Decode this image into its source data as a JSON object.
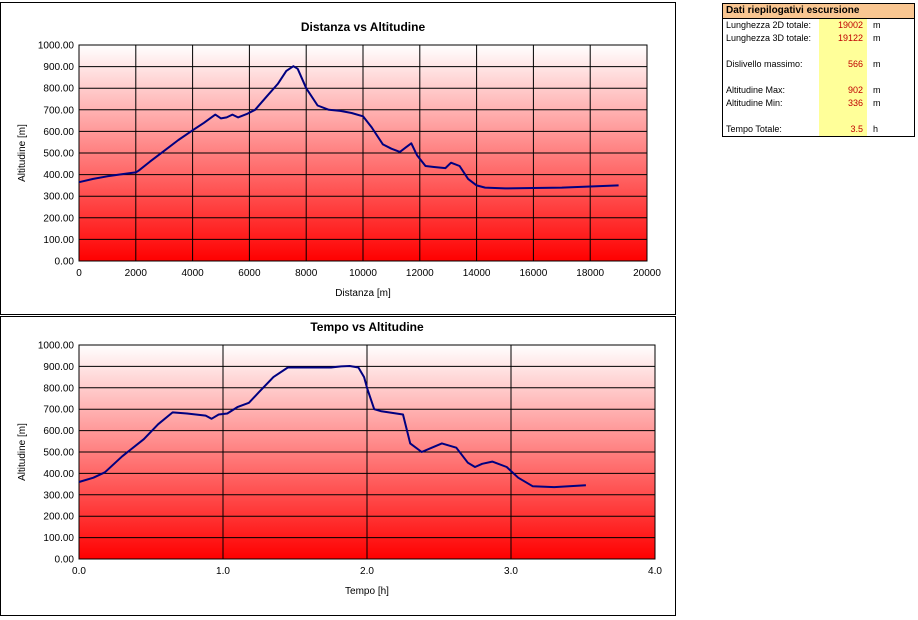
{
  "summary": {
    "title": "Dati riepilogativi escursione",
    "rows": [
      {
        "label": "Lunghezza 2D totale:",
        "value": "19002",
        "unit": "m"
      },
      {
        "label": "Lunghezza 3D totale:",
        "value": "19122",
        "unit": "m"
      },
      {
        "label": "",
        "value": "",
        "unit": ""
      },
      {
        "label": "Dislivello massimo:",
        "value": "566",
        "unit": "m"
      },
      {
        "label": "",
        "value": "",
        "unit": ""
      },
      {
        "label": "Altitudine Max:",
        "value": "902",
        "unit": "m"
      },
      {
        "label": "Altitudine Min:",
        "value": "336",
        "unit": "m"
      },
      {
        "label": "",
        "value": "",
        "unit": ""
      },
      {
        "label": "Tempo Totale:",
        "value": "3.5",
        "unit": "h"
      }
    ],
    "colors": {
      "title_bg": "#f9c691",
      "value_bg": "#ffff99",
      "value_text": "#c00000"
    }
  },
  "chart_data": [
    {
      "type": "line",
      "title": "Distanza vs Altitudine",
      "xlabel": "Distanza [m]",
      "ylabel": "Altitudine [m]",
      "xlim": [
        0,
        20000
      ],
      "ylim": [
        0,
        1000
      ],
      "xticks": [
        0,
        2000,
        4000,
        6000,
        8000,
        10000,
        12000,
        14000,
        16000,
        18000,
        20000
      ],
      "xtick_labels": [
        "0",
        "2000",
        "4000",
        "6000",
        "8000",
        "10000",
        "12000",
        "14000",
        "16000",
        "18000",
        "20000"
      ],
      "yticks": [
        0,
        100,
        200,
        300,
        400,
        500,
        600,
        700,
        800,
        900,
        1000
      ],
      "ytick_labels": [
        "0.00",
        "100.00",
        "200.00",
        "300.00",
        "400.00",
        "500.00",
        "600.00",
        "700.00",
        "800.00",
        "900.00",
        "1000.00"
      ],
      "grid": true,
      "line_color": "#000080",
      "background": "gradient white-to-red",
      "series": [
        {
          "x": [
            0,
            500,
            1000,
            1500,
            2000,
            2100,
            2500,
            3000,
            3500,
            4000,
            4400,
            4800,
            5000,
            5200,
            5400,
            5600,
            5900,
            6200,
            6600,
            7000,
            7300,
            7550,
            7700,
            8000,
            8400,
            8800,
            9200,
            9600,
            10000,
            10300,
            10700,
            11000,
            11300,
            11500,
            11700,
            11900,
            12200,
            12500,
            12900,
            13100,
            13400,
            13700,
            14000,
            14300,
            15000,
            16000,
            17000,
            18000,
            19000
          ],
          "y": [
            365,
            380,
            392,
            402,
            410,
            418,
            460,
            510,
            560,
            605,
            640,
            678,
            660,
            665,
            678,
            665,
            680,
            700,
            760,
            820,
            880,
            902,
            890,
            800,
            720,
            700,
            695,
            685,
            670,
            620,
            540,
            520,
            505,
            525,
            545,
            490,
            440,
            435,
            430,
            455,
            440,
            380,
            350,
            340,
            336,
            338,
            340,
            345,
            350
          ]
        }
      ]
    },
    {
      "type": "line",
      "title": "Tempo vs Altitudine",
      "xlabel": "Tempo [h]",
      "ylabel": "Altitudine [m]",
      "xlim": [
        0,
        4
      ],
      "ylim": [
        0,
        1000
      ],
      "xticks": [
        0,
        1,
        2,
        3,
        4
      ],
      "xtick_labels": [
        "0.0",
        "1.0",
        "2.0",
        "3.0",
        "4.0"
      ],
      "yticks": [
        0,
        100,
        200,
        300,
        400,
        500,
        600,
        700,
        800,
        900,
        1000
      ],
      "ytick_labels": [
        "0.00",
        "100.00",
        "200.00",
        "300.00",
        "400.00",
        "500.00",
        "600.00",
        "700.00",
        "800.00",
        "900.00",
        "1000.00"
      ],
      "grid": true,
      "line_color": "#000080",
      "background": "gradient white-to-red",
      "series": [
        {
          "x": [
            0,
            0.1,
            0.18,
            0.3,
            0.45,
            0.55,
            0.65,
            0.75,
            0.88,
            0.92,
            0.97,
            1.03,
            1.1,
            1.18,
            1.25,
            1.35,
            1.45,
            1.6,
            1.75,
            1.82,
            1.88,
            1.94,
            1.98,
            2.0,
            2.05,
            2.1,
            2.25,
            2.3,
            2.38,
            2.45,
            2.52,
            2.62,
            2.7,
            2.75,
            2.8,
            2.87,
            2.97,
            3.05,
            3.15,
            3.3,
            3.52
          ],
          "y": [
            360,
            380,
            405,
            480,
            560,
            630,
            685,
            680,
            670,
            655,
            675,
            680,
            710,
            730,
            780,
            850,
            895,
            895,
            895,
            900,
            902,
            895,
            850,
            800,
            700,
            690,
            675,
            540,
            500,
            520,
            540,
            520,
            450,
            430,
            445,
            455,
            430,
            380,
            340,
            336,
            345
          ]
        }
      ]
    }
  ]
}
